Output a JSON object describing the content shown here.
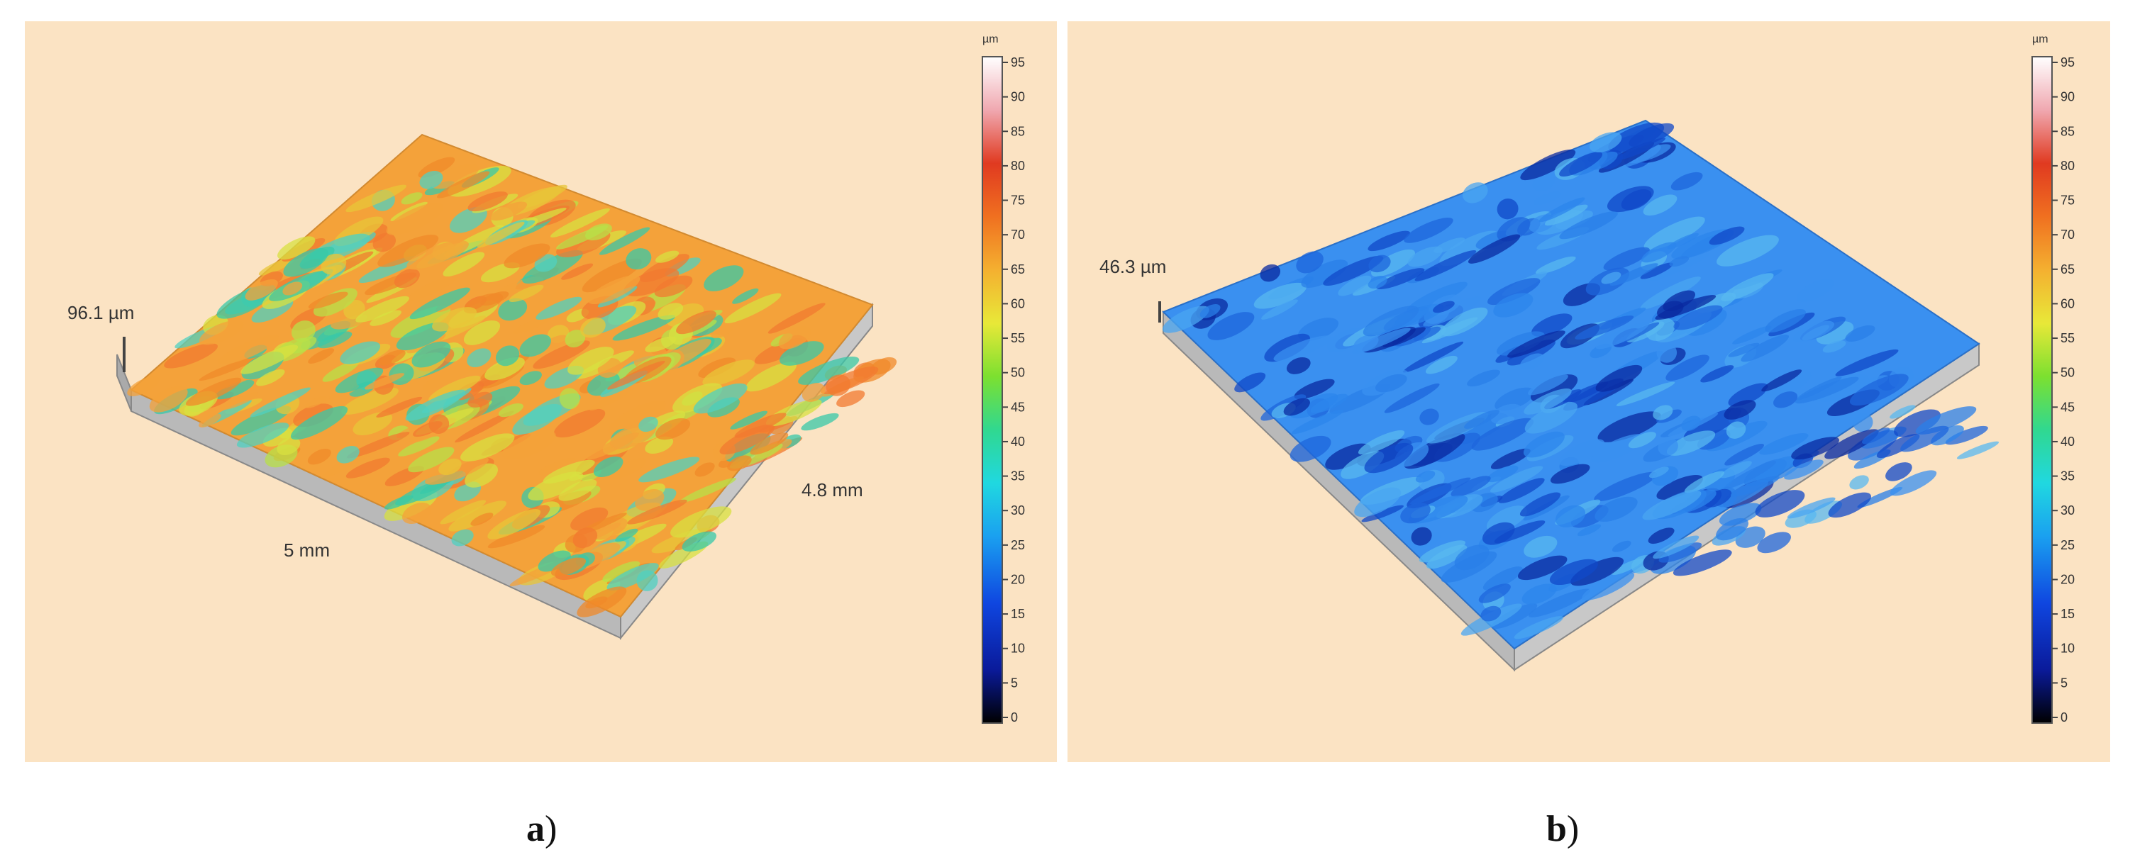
{
  "panels": [
    {
      "id": "a",
      "caption_letter": "a",
      "caption_suffix": ")",
      "background": "#fbe3c3",
      "height_label": "96.1 µm",
      "x_label": "5 mm",
      "y_label": "4.8 mm",
      "surface_palette": [
        "#f08a2a",
        "#f4a23a",
        "#e8c638",
        "#d8e040",
        "#b8e048",
        "#38c8a8",
        "#50d0c0",
        "#f27a30"
      ],
      "scale_unit": "µm",
      "scale_ticks": [
        "95",
        "90",
        "85",
        "80",
        "75",
        "70",
        "65",
        "60",
        "55",
        "50",
        "45",
        "40",
        "35",
        "30",
        "25",
        "20",
        "15",
        "10",
        "5",
        "0"
      ]
    },
    {
      "id": "b",
      "caption_letter": "b",
      "caption_suffix": ")",
      "background": "#fbe3c3",
      "height_label": "46.3 µm",
      "x_label": "",
      "y_label": "",
      "surface_palette": [
        "#2a7fe8",
        "#3a90f0",
        "#1e66dc",
        "#4aa6f2",
        "#1048c8",
        "#0a2aa0",
        "#58b8f0",
        "#2c86ec"
      ],
      "scale_unit": "µm",
      "scale_ticks": [
        "95",
        "90",
        "85",
        "80",
        "75",
        "70",
        "65",
        "60",
        "55",
        "50",
        "45",
        "40",
        "35",
        "30",
        "25",
        "20",
        "15",
        "10",
        "5",
        "0"
      ]
    }
  ]
}
